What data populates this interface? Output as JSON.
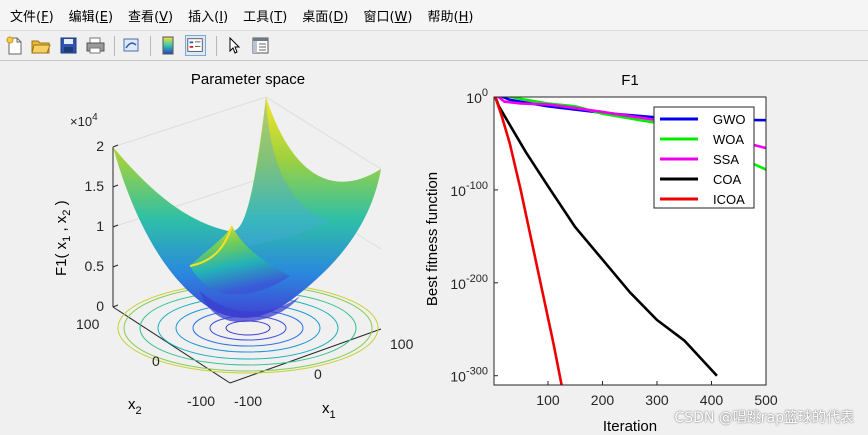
{
  "menubar": {
    "items": [
      {
        "label": "文件",
        "key": "F"
      },
      {
        "label": "编辑",
        "key": "E"
      },
      {
        "label": "查看",
        "key": "V"
      },
      {
        "label": "插入",
        "key": "I"
      },
      {
        "label": "工具",
        "key": "T"
      },
      {
        "label": "桌面",
        "key": "D"
      },
      {
        "label": "窗口",
        "key": "W"
      },
      {
        "label": "帮助",
        "key": "H"
      }
    ]
  },
  "toolbar": {
    "buttons": [
      "new-figure-icon",
      "open-file-icon",
      "save-icon",
      "print-icon",
      "link-plot-icon",
      "colorbar-icon",
      "legend-icon",
      "pointer-icon",
      "property-inspector-icon"
    ]
  },
  "left_plot": {
    "title": "Parameter space",
    "exponent_label": "×10",
    "exponent_power": "4",
    "z_label_main": "F1( x",
    "z_label_sub1": "1",
    "z_label_mid": " , x",
    "z_label_sub2": "2",
    "z_label_end": " )",
    "z_ticks": [
      "2",
      "1.5",
      "1",
      "0.5",
      "0"
    ],
    "x2_ticks": [
      "100",
      "0",
      "-100"
    ],
    "x1_ticks": [
      "-100",
      "0",
      "100"
    ],
    "x1_label": "x",
    "x1_label_sub": "1",
    "x2_label": "x",
    "x2_label_sub": "2"
  },
  "chart_data": {
    "type": "line",
    "title": "F1",
    "xlabel": "Iteration",
    "ylabel": "Best fitness function",
    "xscale": "linear",
    "yscale": "log",
    "xlim": [
      1,
      500
    ],
    "ylog_range": [
      -310,
      0
    ],
    "x_ticks": [
      "100",
      "200",
      "300",
      "400",
      "500"
    ],
    "y_ticks": [
      {
        "base": "10",
        "exp": "0",
        "value": 0
      },
      {
        "base": "10",
        "exp": "-100",
        "value": -100
      },
      {
        "base": "10",
        "exp": "-200",
        "value": -200
      },
      {
        "base": "10",
        "exp": "-300",
        "value": -300
      }
    ],
    "legend_position": "top-right",
    "series": [
      {
        "name": "GWO",
        "color": "#0000ee",
        "x": [
          1,
          30,
          100,
          200,
          300,
          400,
          500
        ],
        "log10_y": [
          4,
          -3,
          -10,
          -17,
          -22,
          -24,
          -25
        ]
      },
      {
        "name": "WOA",
        "color": "#00ee00",
        "x": [
          1,
          50,
          100,
          150,
          200,
          250,
          300,
          350,
          400,
          450,
          500
        ],
        "log10_y": [
          4,
          -2,
          -7,
          -10,
          -18,
          -23,
          -28,
          -37,
          -45,
          -65,
          -78
        ]
      },
      {
        "name": "SSA",
        "color": "#ee00ee",
        "x": [
          1,
          20,
          50,
          100,
          150,
          200,
          300,
          400,
          500
        ],
        "log10_y": [
          4,
          -5,
          -7,
          -8,
          -12,
          -16,
          -25,
          -40,
          -55
        ]
      },
      {
        "name": "COA",
        "color": "#000000",
        "x": [
          1,
          10,
          30,
          60,
          100,
          150,
          200,
          250,
          300,
          350,
          410
        ],
        "log10_y": [
          4,
          -10,
          -30,
          -60,
          -96,
          -140,
          -175,
          -210,
          -240,
          -262,
          -300
        ]
      },
      {
        "name": "ICOA",
        "color": "#ee0000",
        "x": [
          1,
          15,
          30,
          50,
          70,
          90,
          110,
          125
        ],
        "log10_y": [
          4,
          -20,
          -50,
          -100,
          -155,
          -210,
          -265,
          -310
        ]
      }
    ]
  },
  "watermark": "CSDN @唱跳rap篮球的代表"
}
